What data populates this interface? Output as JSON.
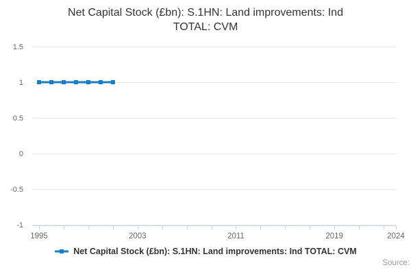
{
  "title": "Net Capital Stock (£bn): S.1HN: Land improvements: Ind TOTAL: CVM",
  "title_lines": [
    "Net Capital Stock (£bn): S.1HN: Land improvements: Ind",
    "TOTAL: CVM"
  ],
  "legend": {
    "label": "Net Capital Stock (£bn): S.1HN: Land improvements: Ind TOTAL: CVM",
    "marker": "line-with-square-marker"
  },
  "source_label": "Source:",
  "colors": {
    "series": "#1580c6",
    "grid": "#e6e6e6",
    "axis": "#ccd6eb",
    "axis_label": "#666666",
    "title": "#333333",
    "legend_text": "#333333",
    "source_text": "#999999",
    "background": "#ffffff"
  },
  "chart_data": {
    "type": "line",
    "title": "Net Capital Stock (£bn): S.1HN: Land improvements: Ind TOTAL: CVM",
    "xlabel": "",
    "ylabel": "",
    "series": [
      {
        "name": "Net Capital Stock (£bn): S.1HN: Land improvements: Ind TOTAL: CVM",
        "x": [
          1995,
          1996,
          1997,
          1998,
          1999,
          2000,
          2001
        ],
        "values": [
          1,
          1,
          1,
          1,
          1,
          1,
          1
        ]
      }
    ],
    "marker": "square",
    "grid": "horizontal",
    "legend_position": "bottom-center",
    "xlim": [
      1994.44,
      2024
    ],
    "ylim": [
      -1,
      1.5
    ],
    "yticks": [
      1.5,
      1,
      0.5,
      0,
      -0.5,
      -1
    ],
    "xticks_minor": [
      1995,
      1997,
      1999,
      2001,
      2003,
      2005,
      2007,
      2009,
      2011,
      2013,
      2015,
      2017,
      2019,
      2021,
      2023,
      2024
    ],
    "xtick_labels": [
      1995,
      2003,
      2011,
      2019,
      2024
    ]
  }
}
